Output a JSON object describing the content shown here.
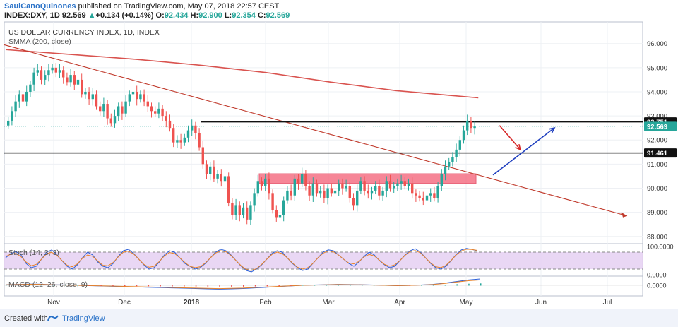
{
  "header": {
    "author": "SaulCanoQuinones",
    "published": "published on TradingView.com, May 07, 2018 22:57 CEST",
    "ticker": "INDEX:DXY, 1D",
    "last": "92.569",
    "change_arrow": "▲",
    "change": "+0.134 (+0.14%)",
    "o_label": "O:",
    "o": "92.434",
    "h_label": "H:",
    "h": "92.900",
    "l_label": "L:",
    "l": "92.354",
    "c_label": "C:",
    "c": "92.569"
  },
  "chart_data": [
    {
      "type": "candlestick",
      "title": "US DOLLAR CURRENCY INDEX, 1D, INDEX",
      "indicator_label": "SMMA (200, close)",
      "x_tick_labels": [
        "Nov",
        "Dec",
        "2018",
        "Feb",
        "Mar",
        "Apr",
        "May",
        "Jun",
        "Jul"
      ],
      "y_ticks": [
        88.0,
        89.0,
        90.0,
        91.0,
        92.0,
        93.0,
        94.0,
        95.0,
        96.0
      ],
      "y_tick_labels": [
        "88.000",
        "89.000",
        "90.000",
        "91.000",
        "92.000",
        "93.000",
        "94.000",
        "95.000",
        "96.000"
      ],
      "ylim": [
        87.7,
        96.9
      ],
      "price_labels": [
        {
          "value": 92.751,
          "text": "92.751",
          "style": "dark"
        },
        {
          "value": 92.569,
          "text": "92.569",
          "style": "green"
        },
        {
          "value": 91.461,
          "text": "91.461",
          "style": "dark"
        }
      ],
      "closes": [
        92.8,
        93.2,
        93.6,
        93.9,
        93.6,
        94.0,
        94.3,
        94.8,
        94.9,
        94.5,
        94.7,
        94.9,
        95.0,
        94.8,
        94.9,
        94.6,
        94.4,
        94.7,
        94.3,
        94.5,
        93.9,
        94.0,
        93.7,
        93.9,
        93.4,
        93.2,
        93.5,
        92.9,
        92.7,
        93.0,
        93.4,
        93.1,
        93.6,
        93.9,
        94.0,
        93.7,
        93.9,
        93.6,
        93.4,
        93.2,
        93.1,
        93.3,
        93.0,
        92.8,
        92.5,
        91.9,
        92.0,
        91.9,
        92.1,
        92.4,
        92.6,
        92.3,
        91.7,
        91.0,
        90.6,
        90.9,
        90.4,
        90.6,
        90.3,
        90.5,
        89.4,
        88.9,
        89.3,
        88.9,
        89.2,
        88.7,
        89.3,
        89.8,
        90.3,
        90.1,
        90.4,
        89.8,
        89.1,
        88.8,
        88.9,
        89.5,
        89.9,
        89.7,
        90.4,
        90.2,
        90.6,
        90.1,
        89.7,
        90.2,
        89.8,
        89.9,
        89.6,
        90.0,
        89.8,
        89.9,
        90.2,
        90.0,
        90.1,
        89.6,
        89.3,
        89.9,
        90.3,
        89.9,
        89.8,
        89.9,
        90.1,
        89.7,
        89.9,
        90.3,
        90.0,
        90.1,
        90.2,
        90.3,
        90.1,
        90.2,
        89.8,
        89.7,
        89.6,
        89.5,
        89.7,
        89.8,
        89.6,
        90.1,
        90.6,
        90.9,
        91.1,
        91.3,
        91.6,
        92.0,
        92.4,
        92.8,
        92.5,
        92.56
      ],
      "smma_200": [
        [
          0,
          95.75
        ],
        [
          60,
          95.55
        ],
        [
          120,
          95.35
        ],
        [
          180,
          95.1
        ],
        [
          240,
          94.8
        ],
        [
          300,
          94.4
        ],
        [
          360,
          94.05
        ],
        [
          410,
          93.85
        ],
        [
          436,
          93.75
        ]
      ],
      "horizontal_lines": [
        92.751,
        91.461
      ],
      "zone": {
        "from": 90.2,
        "to": 90.6,
        "x_start_index": 188,
        "x_end_index": 495
      },
      "trendline": {
        "from": [
          0,
          95.95
        ],
        "to": [
          488,
          88.85
        ]
      },
      "arrows": [
        {
          "color": "red",
          "from": [
            378,
            92.6
          ],
          "to": [
            394,
            91.6
          ]
        },
        {
          "color": "blue",
          "from": [
            373,
            90.55
          ],
          "to": [
            420,
            92.5
          ]
        }
      ]
    },
    {
      "type": "line",
      "title": "Stoch (14, 3, 3)",
      "y_tick_labels": [
        "100.0000",
        "0.0000"
      ],
      "levels": [
        80,
        20
      ],
      "k": [
        60,
        75,
        82,
        70,
        40,
        25,
        30,
        55,
        80,
        88,
        70,
        50,
        30,
        20,
        35,
        60,
        80,
        70,
        45,
        30,
        25,
        40,
        65,
        85,
        90,
        75,
        55,
        35,
        20,
        25,
        45,
        70,
        85,
        80,
        60,
        40,
        30,
        20,
        25,
        40,
        60,
        80,
        90,
        85,
        70,
        50,
        30,
        15,
        10,
        20,
        35,
        55,
        75,
        85,
        80,
        60,
        40,
        25,
        15,
        20,
        40,
        60,
        80,
        88,
        85,
        70,
        55,
        40,
        30,
        45,
        65,
        80,
        70,
        50,
        35,
        25,
        30,
        50,
        70,
        85,
        92,
        80,
        60,
        40,
        25,
        20,
        30,
        50,
        72,
        88,
        93,
        90,
        85
      ]
    },
    {
      "type": "line",
      "title": "MACD (12, 26, close, 9)",
      "y_tick_labels": [
        "0.0000"
      ],
      "macd": [
        0.1,
        0.15,
        0.2,
        0.18,
        0.1,
        0.05,
        0.0,
        -0.05,
        -0.1,
        -0.15,
        -0.2,
        -0.25,
        -0.3,
        -0.35,
        -0.4,
        -0.45,
        -0.5,
        -0.55,
        -0.6,
        -0.55,
        -0.5,
        -0.4,
        -0.3,
        -0.2,
        -0.1,
        0.0,
        0.05,
        0.1,
        0.15,
        0.12,
        0.1,
        0.05,
        0.0,
        -0.05,
        -0.02,
        0.05,
        0.15,
        0.35,
        0.6,
        0.85,
        1.0
      ]
    }
  ],
  "footer": {
    "created": "Created with",
    "brand": "TradingView"
  }
}
